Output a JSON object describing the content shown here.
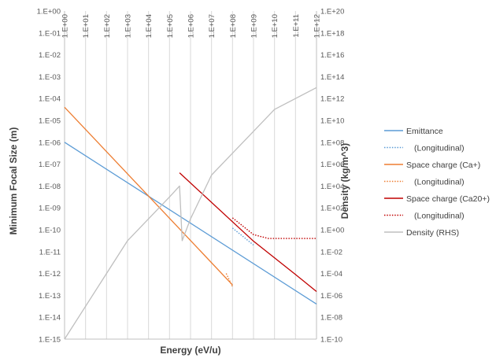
{
  "chart_data": {
    "type": "line",
    "title": "",
    "xlabel": "Energy (eV/u)",
    "ylabel": "Minimum Focal Size (m)",
    "y2label": "Density (kg/m^3)",
    "x_scale": "log",
    "y_scale": "log",
    "y2_scale": "log",
    "xlim": [
      1,
      1000000000000
    ],
    "ylim": [
      1e-15,
      1
    ],
    "y2lim": [
      1e-10,
      1e+20
    ],
    "grid": "vertical",
    "legend_position": "right",
    "x_tick_labels": [
      "1.E+00",
      "1.E+01",
      "1.E+02",
      "1.E+03",
      "1.E+04",
      "1.E+05",
      "1.E+06",
      "1.E+07",
      "1.E+08",
      "1.E+09",
      "1.E+10",
      "1.E+11",
      "1.E+12"
    ],
    "y_tick_labels": [
      "1.E+00",
      "1.E-01",
      "1.E-02",
      "1.E-03",
      "1.E-04",
      "1.E-05",
      "1.E-06",
      "1.E-07",
      "1.E-08",
      "1.E-09",
      "1.E-10",
      "1.E-11",
      "1.E-12",
      "1.E-13",
      "1.E-14",
      "1.E-15"
    ],
    "y2_tick_labels": [
      "1.E+20",
      "1.E+18",
      "1.E+16",
      "1.E+14",
      "1.E+12",
      "1.E+10",
      "1.E+08",
      "1.E+06",
      "1.E+04",
      "1.E+02",
      "1.E+00",
      "1.E-02",
      "1.E-04",
      "1.E-06",
      "1.E-08",
      "1.E-10"
    ],
    "series": [
      {
        "name": "Emittance",
        "axis": "left",
        "color": "#5b9bd5",
        "dash": "solid",
        "points": [
          [
            1,
            1e-06
          ],
          [
            1000000000000.0,
            4e-14
          ]
        ]
      },
      {
        "name": "(Longitudinal)",
        "axis": "left",
        "color": "#5b9bd5",
        "dash": "dotted",
        "points": [
          [
            100000000.0,
            1.2e-10
          ],
          [
            1000000000.0,
            2e-11
          ]
        ]
      },
      {
        "name": "Space charge (Ca+)",
        "axis": "left",
        "color": "#ed7d31",
        "dash": "solid",
        "points": [
          [
            1,
            4e-05
          ],
          [
            100000000.0,
            3e-13
          ]
        ]
      },
      {
        "name": "(Longitudinal)",
        "axis": "left",
        "color": "#ed7d31",
        "dash": "dotted",
        "points": [
          [
            50000000.0,
            1e-12
          ],
          [
            100000000.0,
            2.5e-13
          ]
        ]
      },
      {
        "name": "Space charge (Ca20+)",
        "axis": "left",
        "color": "#c00000",
        "dash": "solid",
        "points": [
          [
            300000.0,
            4e-08
          ],
          [
            1000000000.0,
            3e-11
          ],
          [
            100000000000.0,
            9e-13
          ],
          [
            1000000000000.0,
            1.5e-13
          ]
        ]
      },
      {
        "name": "(Longitudinal)",
        "axis": "left",
        "color": "#c00000",
        "dash": "dotted",
        "points": [
          [
            100000000.0,
            3.5e-10
          ],
          [
            1000000000.0,
            6e-11
          ],
          [
            5000000000.0,
            4e-11
          ],
          [
            1000000000000.0,
            4e-11
          ]
        ]
      },
      {
        "name": "Density (RHS)",
        "axis": "right",
        "color": "#bfbfbf",
        "dash": "solid",
        "points": [
          [
            1,
            1e-10
          ],
          [
            1000.0,
            0.1
          ],
          [
            100000.0,
            1000.0
          ],
          [
            300000.0,
            10000.0
          ],
          [
            400000.0,
            0.1
          ],
          [
            1000000.0,
            10.0
          ],
          [
            10000000.0,
            100000.0
          ],
          [
            100000000.0,
            10000000.0
          ],
          [
            1000000000.0,
            1000000000.0
          ],
          [
            10000000000.0,
            100000000000.0
          ],
          [
            100000000000.0,
            1000000000000.0
          ],
          [
            1000000000000.0,
            10000000000000.0
          ]
        ]
      }
    ]
  }
}
